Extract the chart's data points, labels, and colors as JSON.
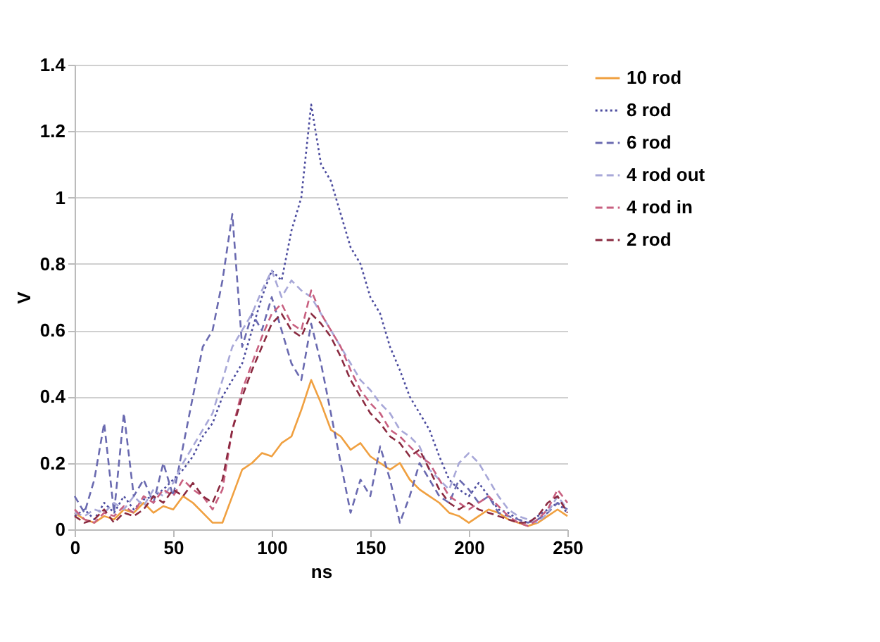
{
  "chart_data": {
    "type": "line",
    "xlabel": "ns",
    "ylabel": "V",
    "x": [
      0,
      5,
      10,
      15,
      20,
      25,
      30,
      35,
      40,
      45,
      50,
      55,
      60,
      65,
      70,
      75,
      80,
      85,
      90,
      95,
      100,
      105,
      110,
      115,
      120,
      125,
      130,
      135,
      140,
      145,
      150,
      155,
      160,
      165,
      170,
      175,
      180,
      185,
      190,
      195,
      200,
      205,
      210,
      215,
      220,
      225,
      230,
      235,
      240,
      245,
      250
    ],
    "xlim": [
      0,
      250
    ],
    "xticks": [
      0,
      50,
      100,
      150,
      200,
      250
    ],
    "ylim": [
      0,
      1.4
    ],
    "yticks": [
      0,
      0.2,
      0.4,
      0.6,
      0.8,
      1,
      1.2,
      1.4
    ],
    "grid": "y",
    "legend": "right",
    "marker": "none",
    "series": [
      {
        "name": "10 rod",
        "color": "#f0a040",
        "line_style": "solid",
        "values": [
          0.05,
          0.03,
          0.02,
          0.04,
          0.03,
          0.06,
          0.05,
          0.08,
          0.05,
          0.07,
          0.06,
          0.1,
          0.08,
          0.05,
          0.02,
          0.02,
          0.1,
          0.18,
          0.2,
          0.23,
          0.22,
          0.26,
          0.28,
          0.36,
          0.45,
          0.38,
          0.3,
          0.28,
          0.24,
          0.26,
          0.22,
          0.2,
          0.18,
          0.2,
          0.15,
          0.12,
          0.1,
          0.08,
          0.05,
          0.04,
          0.02,
          0.04,
          0.06,
          0.05,
          0.03,
          0.02,
          0.01,
          0.02,
          0.04,
          0.06,
          0.04
        ]
      },
      {
        "name": "8 rod",
        "color": "#4b4b9e",
        "line_style": "dotted",
        "values": [
          0.04,
          0.06,
          0.03,
          0.08,
          0.05,
          0.1,
          0.06,
          0.09,
          0.1,
          0.12,
          0.15,
          0.18,
          0.22,
          0.28,
          0.32,
          0.4,
          0.45,
          0.5,
          0.6,
          0.7,
          0.78,
          0.75,
          0.9,
          1.0,
          1.28,
          1.1,
          1.05,
          0.95,
          0.85,
          0.8,
          0.7,
          0.65,
          0.55,
          0.48,
          0.4,
          0.35,
          0.3,
          0.22,
          0.15,
          0.12,
          0.1,
          0.14,
          0.1,
          0.06,
          0.05,
          0.03,
          0.02,
          0.04,
          0.06,
          0.08,
          0.05
        ]
      },
      {
        "name": "6 rod",
        "color": "#6a6ab0",
        "line_style": "dashed",
        "values": [
          0.1,
          0.05,
          0.15,
          0.32,
          0.05,
          0.35,
          0.1,
          0.15,
          0.08,
          0.2,
          0.1,
          0.25,
          0.4,
          0.55,
          0.6,
          0.75,
          0.95,
          0.55,
          0.65,
          0.6,
          0.7,
          0.6,
          0.5,
          0.45,
          0.62,
          0.5,
          0.35,
          0.2,
          0.05,
          0.15,
          0.1,
          0.25,
          0.15,
          0.02,
          0.1,
          0.2,
          0.15,
          0.1,
          0.08,
          0.15,
          0.12,
          0.08,
          0.1,
          0.05,
          0.04,
          0.03,
          0.02,
          0.03,
          0.05,
          0.08,
          0.06
        ]
      },
      {
        "name": "4 rod out",
        "color": "#a8a8d8",
        "line_style": "dashed",
        "values": [
          0.05,
          0.04,
          0.06,
          0.05,
          0.08,
          0.06,
          0.1,
          0.07,
          0.12,
          0.1,
          0.14,
          0.2,
          0.25,
          0.3,
          0.35,
          0.45,
          0.55,
          0.6,
          0.65,
          0.72,
          0.78,
          0.7,
          0.75,
          0.72,
          0.7,
          0.65,
          0.6,
          0.55,
          0.5,
          0.45,
          0.42,
          0.38,
          0.35,
          0.3,
          0.28,
          0.25,
          0.18,
          0.15,
          0.12,
          0.2,
          0.23,
          0.2,
          0.15,
          0.1,
          0.06,
          0.04,
          0.03,
          0.02,
          0.05,
          0.1,
          0.06
        ]
      },
      {
        "name": "4 rod in",
        "color": "#c86080",
        "line_style": "dashed",
        "values": [
          0.06,
          0.03,
          0.02,
          0.05,
          0.04,
          0.07,
          0.05,
          0.1,
          0.08,
          0.12,
          0.1,
          0.15,
          0.12,
          0.1,
          0.06,
          0.12,
          0.3,
          0.42,
          0.5,
          0.58,
          0.65,
          0.68,
          0.62,
          0.6,
          0.72,
          0.65,
          0.6,
          0.55,
          0.48,
          0.42,
          0.38,
          0.35,
          0.3,
          0.28,
          0.25,
          0.22,
          0.2,
          0.15,
          0.1,
          0.08,
          0.06,
          0.08,
          0.1,
          0.07,
          0.04,
          0.02,
          0.01,
          0.03,
          0.06,
          0.12,
          0.08
        ]
      },
      {
        "name": "2 rod",
        "color": "#8a2a40",
        "line_style": "dashed",
        "values": [
          0.04,
          0.02,
          0.03,
          0.06,
          0.02,
          0.05,
          0.04,
          0.06,
          0.1,
          0.08,
          0.12,
          0.1,
          0.14,
          0.1,
          0.08,
          0.15,
          0.3,
          0.4,
          0.48,
          0.55,
          0.62,
          0.65,
          0.6,
          0.58,
          0.65,
          0.62,
          0.58,
          0.52,
          0.45,
          0.4,
          0.35,
          0.32,
          0.28,
          0.26,
          0.22,
          0.24,
          0.18,
          0.12,
          0.08,
          0.06,
          0.08,
          0.06,
          0.05,
          0.04,
          0.03,
          0.02,
          0.02,
          0.04,
          0.08,
          0.1,
          0.05
        ]
      }
    ]
  }
}
